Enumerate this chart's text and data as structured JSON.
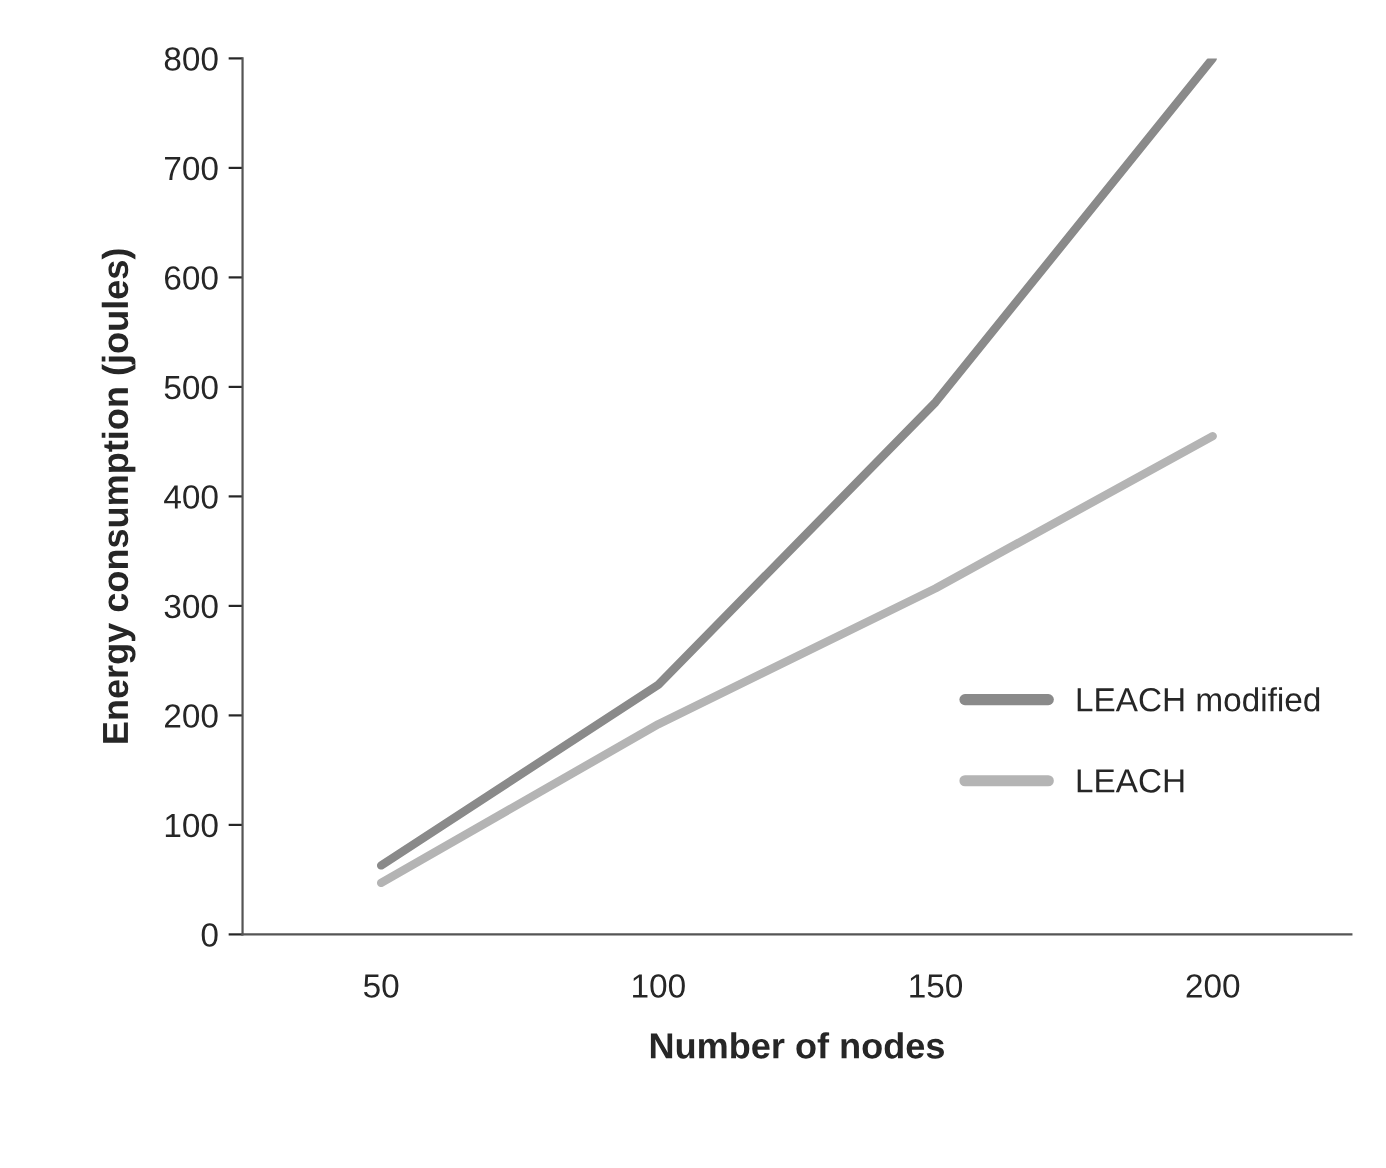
{
  "chart_data": {
    "type": "line",
    "xlabel": "Number of nodes",
    "ylabel": "Energy consumption (joules)",
    "categories": [
      "50",
      "100",
      "150",
      "200"
    ],
    "series": [
      {
        "name": "LEACH modified",
        "color": "#8a8a8a",
        "values": [
          63,
          228,
          486,
          800
        ]
      },
      {
        "name": "LEACH",
        "color": "#b4b4b4",
        "values": [
          47,
          192,
          316,
          455
        ]
      }
    ],
    "ylim": [
      0,
      800
    ],
    "yticks": [
      0,
      100,
      200,
      300,
      400,
      500,
      600,
      700,
      800
    ],
    "grid": false,
    "legend": "right",
    "marker": "none",
    "line_style": "solid"
  }
}
